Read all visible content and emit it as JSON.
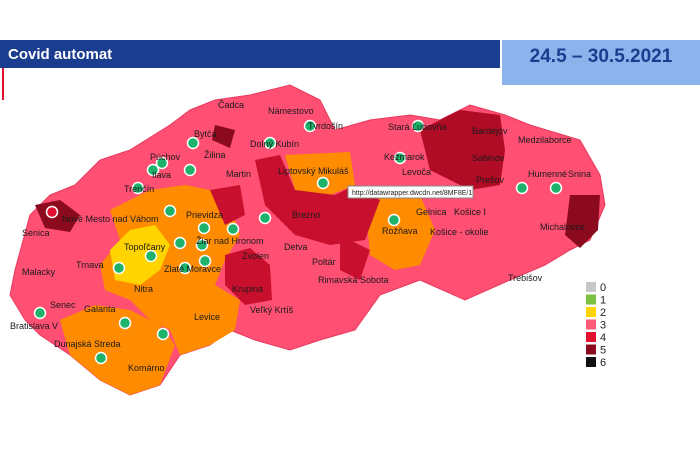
{
  "header": {
    "title": "Covid automat",
    "date": "24.5 – 30.5.2021"
  },
  "tooltip": "http://datawrapper.dwcdn.net/8MF8E/1",
  "districts": [
    "Čadca",
    "Námestovo",
    "Tvrdošín",
    "Stará Ľubovňa",
    "Bardejov",
    "Bytča",
    "Dolný Kubín",
    "Žilina",
    "Púchov",
    "Kežmarok",
    "Sabinov",
    "Medzilaborce",
    "Ilava",
    "Martin",
    "Liptovský Mikuláš",
    "Levoča",
    "Prešov",
    "Humenné",
    "Snina",
    "Trenčín",
    "Nové Mesto nad Váhom",
    "Prievidza",
    "Brezno",
    "Gelnica",
    "Košice I",
    "Senica",
    "Topoľčany",
    "Žiar nad Hronom",
    "Rožňava",
    "Košice - okolie",
    "Michalovce",
    "Detva",
    "Zvolen",
    "Malacky",
    "Trnava",
    "Zlaté Moravce",
    "Poltár",
    "Rimavská Sobota",
    "Trebišov",
    "Nitra",
    "Krupina",
    "Senec",
    "Galanta",
    "Veľký Krtíš",
    "Bratislava V",
    "Levice",
    "Dunajská Streda",
    "Komárno"
  ],
  "legend": [
    {
      "label": "0",
      "color": "#c8c8c8"
    },
    {
      "label": "1",
      "color": "#7cc242"
    },
    {
      "label": "2",
      "color": "#ffd400"
    },
    {
      "label": "3",
      "color": "#ff5a78"
    },
    {
      "label": "4",
      "color": "#e2102e"
    },
    {
      "label": "5",
      "color": "#8b0a1e"
    },
    {
      "label": "6",
      "color": "#111111"
    }
  ]
}
